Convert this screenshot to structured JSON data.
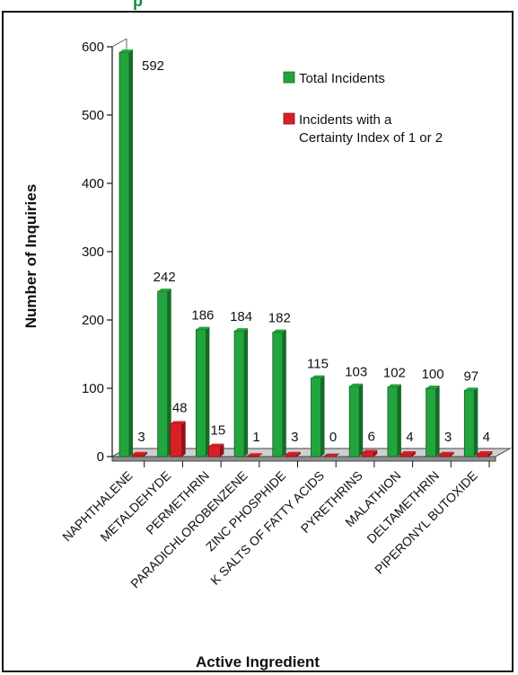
{
  "header": {
    "title_fragment": "p"
  },
  "chart_data": {
    "type": "bar",
    "categories": [
      "NAPHTHALENE",
      "METALDEHYDE",
      "PERMETHRIN",
      "PARADICHLOROBENZENE",
      "ZINC PHOSPHIDE",
      "K SALTS OF FATTY ACIDS",
      "PYRETHRINS",
      "MALATHION",
      "DELTAMETHRIN",
      "PIPERONYL BUTOXIDE"
    ],
    "series": [
      {
        "name": "Total Incidents",
        "color": "#22a53e",
        "values": [
          592,
          242,
          186,
          184,
          182,
          115,
          103,
          102,
          100,
          97
        ]
      },
      {
        "name": "Incidents with a Certainty Index of 1 or 2",
        "color": "#d91f26",
        "values": [
          3,
          48,
          15,
          1,
          3,
          0,
          6,
          4,
          3,
          4
        ]
      }
    ],
    "xlabel": "Active Ingredient",
    "ylabel": "Number of Inquiries",
    "ylim": [
      0,
      600
    ],
    "yticks": [
      0,
      100,
      200,
      300,
      400,
      500,
      600
    ],
    "legend": {
      "position": "top-right",
      "entries": [
        {
          "lines": [
            "Total Incidents"
          ],
          "color": "#22a53e"
        },
        {
          "lines": [
            "Incidents with a",
            "Certainty Index of 1 or 2"
          ],
          "color": "#d91f26"
        }
      ]
    },
    "style": "3d"
  }
}
